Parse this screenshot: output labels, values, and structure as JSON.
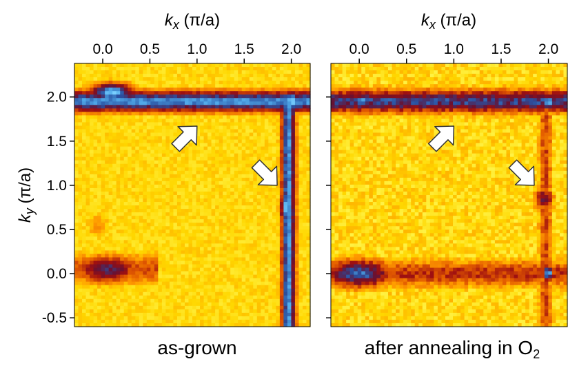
{
  "chart_data": [
    {
      "type": "heatmap",
      "title": "as-grown",
      "xlabel": {
        "symbol": "k",
        "sub": "x",
        "unit": " (π/a)"
      },
      "ylabel": {
        "symbol": "k",
        "sub": "y",
        "unit": " (π/a)"
      },
      "xlim": [
        -0.3,
        2.2
      ],
      "ylim": [
        -0.6,
        2.38
      ],
      "xticks": [
        {
          "value": 0.0,
          "label": "0.0"
        },
        {
          "value": 0.5,
          "label": "0.5"
        },
        {
          "value": 1.0,
          "label": "1.0"
        },
        {
          "value": 1.5,
          "label": "1.5"
        },
        {
          "value": 2.0,
          "label": "2.0"
        }
      ],
      "yticks": [
        {
          "value": 2.0,
          "label": "2.0"
        },
        {
          "value": 1.5,
          "label": "1.5"
        },
        {
          "value": 1.0,
          "label": "1.0"
        },
        {
          "value": 0.5,
          "label": "0.5"
        },
        {
          "value": 0.0,
          "label": "0.0"
        },
        {
          "value": -0.5,
          "label": "-0.5"
        }
      ],
      "colormap": [
        "#ffff66",
        "#ffd700",
        "#ff9a00",
        "#e25a00",
        "#a01010",
        "#6a1030",
        "#2a50a0",
        "#4fa8e8",
        "#7ad0ff"
      ],
      "features": [
        {
          "kind": "hline",
          "y": 1.95,
          "x0": -0.3,
          "x1": 2.2,
          "width": 0.09,
          "strength": 0.85
        },
        {
          "kind": "vline",
          "x": 1.97,
          "y0": -0.6,
          "y1": 1.95,
          "width": 0.06,
          "strength": 0.85
        },
        {
          "kind": "blob",
          "x": 0.1,
          "y": 2.05,
          "sx": 0.18,
          "sy": 0.08,
          "strength": 0.95
        },
        {
          "kind": "blob",
          "x": 1.1,
          "y": 1.95,
          "sx": 0.35,
          "sy": 0.05,
          "strength": 0.92
        },
        {
          "kind": "blob",
          "x": 2.0,
          "y": 1.95,
          "sx": 0.06,
          "sy": 0.09,
          "strength": 1.0
        },
        {
          "kind": "blob",
          "x": 1.95,
          "y": 0.75,
          "sx": 0.05,
          "sy": 0.18,
          "strength": 0.95
        },
        {
          "kind": "blob",
          "x": 0.05,
          "y": 0.05,
          "sx": 0.25,
          "sy": 0.12,
          "strength": 0.68
        },
        {
          "kind": "hline",
          "y": 0.05,
          "x0": -0.3,
          "x1": 0.6,
          "width": 0.14,
          "strength": 0.4
        },
        {
          "kind": "blob",
          "x": -0.05,
          "y": 0.55,
          "sx": 0.1,
          "sy": 0.12,
          "strength": 0.28
        }
      ],
      "arrows": [
        {
          "tip": [
            1.0,
            1.67
          ],
          "direction": "up-right"
        },
        {
          "tip": [
            1.85,
            1.0
          ],
          "direction": "down-right"
        }
      ]
    },
    {
      "type": "heatmap",
      "title": "after annealing in O",
      "title_sub": "2",
      "xlabel": {
        "symbol": "k",
        "sub": "x",
        "unit": " (π/a)"
      },
      "xlim": [
        -0.3,
        2.2
      ],
      "ylim": [
        -0.6,
        2.38
      ],
      "xticks": [
        {
          "value": 0.0,
          "label": "0.0"
        },
        {
          "value": 0.5,
          "label": "0.5"
        },
        {
          "value": 1.0,
          "label": "1.0"
        },
        {
          "value": 1.5,
          "label": "1.5"
        },
        {
          "value": 2.0,
          "label": "2.0"
        }
      ],
      "yticks": [
        {
          "value": 2.0
        },
        {
          "value": 1.5
        },
        {
          "value": 1.0
        },
        {
          "value": 0.5
        },
        {
          "value": 0.0
        },
        {
          "value": -0.5
        }
      ],
      "colormap": [
        "#ffff66",
        "#ffd700",
        "#ff9a00",
        "#e25a00",
        "#a01010",
        "#6a1030",
        "#2a50a0",
        "#4fa8e8",
        "#7ad0ff"
      ],
      "features": [
        {
          "kind": "hline",
          "y": 1.95,
          "x0": -0.3,
          "x1": 2.2,
          "width": 0.1,
          "strength": 0.72
        },
        {
          "kind": "blob",
          "x": 0.0,
          "y": 1.97,
          "sx": 0.25,
          "sy": 0.05,
          "strength": 0.8
        },
        {
          "kind": "blob",
          "x": 1.1,
          "y": 1.95,
          "sx": 0.3,
          "sy": 0.04,
          "strength": 0.8
        },
        {
          "kind": "blob",
          "x": 2.0,
          "y": 1.95,
          "sx": 0.06,
          "sy": 0.07,
          "strength": 0.95
        },
        {
          "kind": "vline",
          "x": 1.97,
          "y0": -0.6,
          "y1": 1.95,
          "width": 0.06,
          "strength": 0.4
        },
        {
          "kind": "blob",
          "x": 1.95,
          "y": 0.85,
          "sx": 0.08,
          "sy": 0.1,
          "strength": 0.62
        },
        {
          "kind": "hline",
          "y": 0.0,
          "x0": -0.3,
          "x1": 2.2,
          "width": 0.12,
          "strength": 0.45
        },
        {
          "kind": "blob",
          "x": 0.0,
          "y": 0.0,
          "sx": 0.28,
          "sy": 0.12,
          "strength": 0.8
        },
        {
          "kind": "blob",
          "x": 2.0,
          "y": 0.0,
          "sx": 0.05,
          "sy": 0.07,
          "strength": 0.88
        }
      ],
      "arrows": [
        {
          "tip": [
            1.0,
            1.67
          ],
          "direction": "up-right"
        },
        {
          "tip": [
            1.85,
            1.0
          ],
          "direction": "down-right"
        }
      ]
    }
  ]
}
